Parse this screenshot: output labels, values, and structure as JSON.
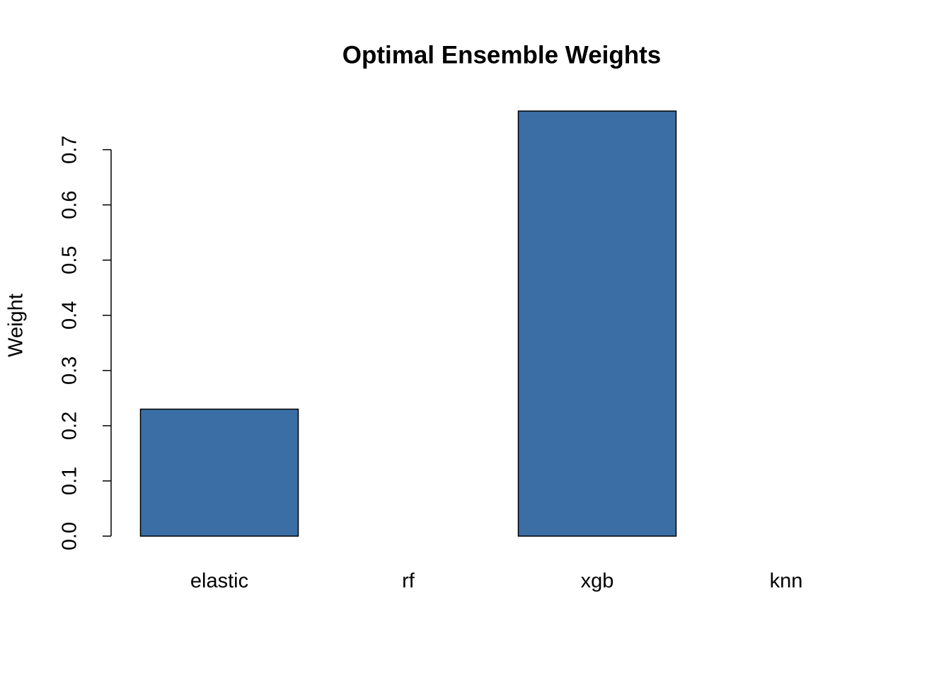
{
  "chart_data": {
    "type": "bar",
    "title": "Optimal Ensemble Weights",
    "y_label": "Weight",
    "categories": [
      "elastic",
      "rf",
      "xgb",
      "knn"
    ],
    "values": [
      0.23,
      0,
      0.77,
      0
    ],
    "color": "#3a6ea5",
    "ylim": [
      0,
      0.77
    ],
    "yticks": [
      {
        "value": 0,
        "label": "0.0"
      },
      0.1,
      0.2,
      0.3,
      0.4,
      0.5,
      0.6,
      0.7
    ],
    "grid": false
  }
}
